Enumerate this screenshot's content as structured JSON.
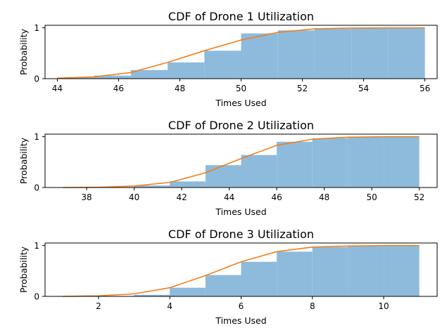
{
  "colors": {
    "hist": "#8ebbdc",
    "cdf": "#f07f1d"
  },
  "chart_data": [
    {
      "type": "bar",
      "title": "CDF of Drone 1 Utilization",
      "xlabel": "Times Used",
      "ylabel": "Probability",
      "xlim": [
        43.6,
        56.4
      ],
      "ylim": [
        0,
        1.05
      ],
      "xticks": [
        "44",
        "46",
        "48",
        "50",
        "52",
        "54",
        "56"
      ],
      "yticks": [
        "0",
        "1"
      ],
      "bins": [
        {
          "x0": 44.0,
          "x1": 45.2,
          "value": 0.02
        },
        {
          "x0": 45.2,
          "x1": 46.4,
          "value": 0.06
        },
        {
          "x0": 46.4,
          "x1": 47.6,
          "value": 0.17
        },
        {
          "x0": 47.6,
          "x1": 48.8,
          "value": 0.32
        },
        {
          "x0": 48.8,
          "x1": 50.0,
          "value": 0.55
        },
        {
          "x0": 50.0,
          "x1": 51.2,
          "value": 0.89
        },
        {
          "x0": 51.2,
          "x1": 52.4,
          "value": 0.95
        },
        {
          "x0": 52.4,
          "x1": 53.6,
          "value": 0.98
        },
        {
          "x0": 53.6,
          "x1": 54.8,
          "value": 0.99
        },
        {
          "x0": 54.8,
          "x1": 56.0,
          "value": 1.0
        }
      ],
      "line": {
        "x": [
          44.0,
          45.2,
          46.4,
          47.6,
          48.8,
          50.0,
          51.2,
          52.4,
          53.6,
          54.8,
          56.0
        ],
        "y": [
          0.01,
          0.035,
          0.12,
          0.32,
          0.55,
          0.76,
          0.91,
          0.98,
          0.995,
          1.0,
          1.0
        ]
      }
    },
    {
      "type": "bar",
      "title": "CDF of Drone 2 Utilization",
      "xlabel": "Times Used",
      "ylabel": "Probability",
      "xlim": [
        36.25,
        52.75
      ],
      "ylim": [
        0,
        1.05
      ],
      "xticks": [
        "38",
        "40",
        "42",
        "44",
        "46",
        "48",
        "50",
        "52"
      ],
      "yticks": [
        "0",
        "1"
      ],
      "bins": [
        {
          "x0": 37.0,
          "x1": 38.5,
          "value": 0.0
        },
        {
          "x0": 38.5,
          "x1": 40.0,
          "value": 0.01
        },
        {
          "x0": 40.0,
          "x1": 41.5,
          "value": 0.04
        },
        {
          "x0": 41.5,
          "x1": 43.0,
          "value": 0.12
        },
        {
          "x0": 43.0,
          "x1": 44.5,
          "value": 0.44
        },
        {
          "x0": 44.5,
          "x1": 46.0,
          "value": 0.64
        },
        {
          "x0": 46.0,
          "x1": 47.5,
          "value": 0.9
        },
        {
          "x0": 47.5,
          "x1": 49.0,
          "value": 0.97
        },
        {
          "x0": 49.0,
          "x1": 50.5,
          "value": 0.99
        },
        {
          "x0": 50.5,
          "x1": 52.0,
          "value": 1.0
        }
      ],
      "line": {
        "x": [
          37.0,
          38.5,
          40.0,
          41.5,
          43.0,
          44.5,
          46.0,
          47.5,
          49.0,
          50.5,
          52.0
        ],
        "y": [
          0.0,
          0.005,
          0.03,
          0.1,
          0.29,
          0.57,
          0.83,
          0.95,
          0.99,
          1.0,
          1.0
        ]
      }
    },
    {
      "type": "bar",
      "title": "CDF of Drone 3 Utilization",
      "xlabel": "Times Used",
      "ylabel": "Probability",
      "xlim": [
        0.5,
        11.5
      ],
      "ylim": [
        0,
        1.05
      ],
      "xticks": [
        "2",
        "4",
        "6",
        "8",
        "10"
      ],
      "yticks": [
        "0",
        "1"
      ],
      "bins": [
        {
          "x0": 1.0,
          "x1": 2.0,
          "value": 0.0
        },
        {
          "x0": 2.0,
          "x1": 3.0,
          "value": 0.0
        },
        {
          "x0": 3.0,
          "x1": 4.0,
          "value": 0.03
        },
        {
          "x0": 4.0,
          "x1": 5.0,
          "value": 0.17
        },
        {
          "x0": 5.0,
          "x1": 6.0,
          "value": 0.42
        },
        {
          "x0": 6.0,
          "x1": 7.0,
          "value": 0.68
        },
        {
          "x0": 7.0,
          "x1": 8.0,
          "value": 0.88
        },
        {
          "x0": 8.0,
          "x1": 9.0,
          "value": 0.97
        },
        {
          "x0": 9.0,
          "x1": 10.0,
          "value": 0.99
        },
        {
          "x0": 10.0,
          "x1": 11.0,
          "value": 1.0
        }
      ],
      "line": {
        "x": [
          1,
          2,
          3,
          4,
          5,
          6,
          7,
          8,
          9,
          10,
          11
        ],
        "y": [
          0.0,
          0.01,
          0.05,
          0.17,
          0.41,
          0.68,
          0.88,
          0.97,
          0.99,
          1.0,
          1.0
        ]
      }
    }
  ]
}
